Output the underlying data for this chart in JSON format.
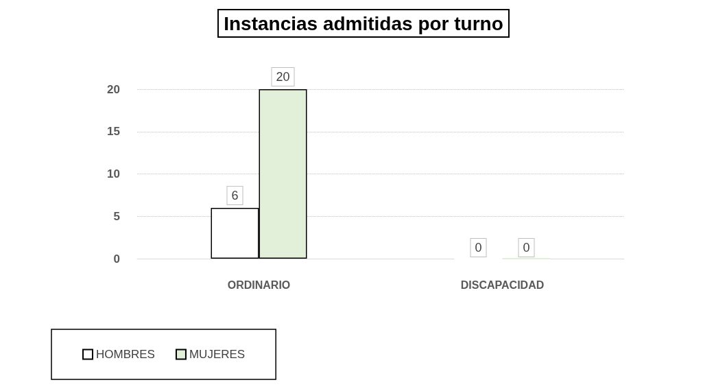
{
  "chart_data": {
    "type": "bar",
    "title": "Instancias admitidas por turno",
    "categories": [
      "ORDINARIO",
      "DISCAPACIDAD"
    ],
    "series": [
      {
        "name": "HOMBRES",
        "color": "#ffffff",
        "values": [
          6,
          0
        ]
      },
      {
        "name": "MUJERES",
        "color": "#e2f0d9",
        "values": [
          20,
          0
        ]
      }
    ],
    "ylim": [
      0,
      20
    ],
    "yticks": [
      0,
      5,
      10,
      15,
      20
    ],
    "grid": "y",
    "legend": "bottom left",
    "data_labels": true
  }
}
